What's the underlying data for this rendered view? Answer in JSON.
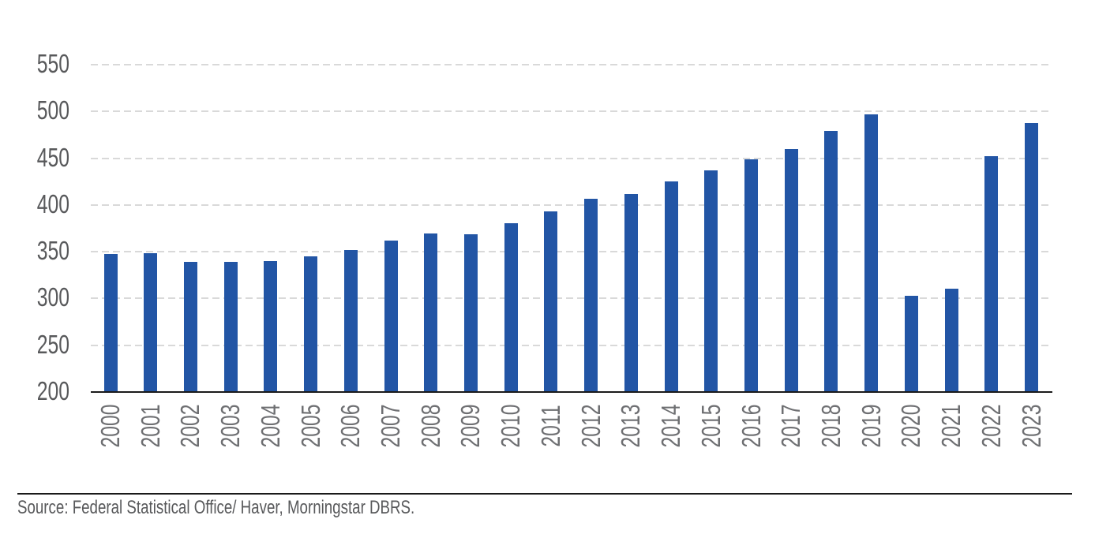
{
  "chart_data": {
    "type": "bar",
    "title": "",
    "categories": [
      "2000",
      "2001",
      "2002",
      "2003",
      "2004",
      "2005",
      "2006",
      "2007",
      "2008",
      "2009",
      "2010",
      "2011",
      "2012",
      "2013",
      "2014",
      "2015",
      "2016",
      "2017",
      "2018",
      "2019",
      "2020",
      "2021",
      "2022",
      "2023"
    ],
    "values": [
      347,
      348,
      338,
      338,
      339,
      344,
      351,
      361,
      369,
      368,
      380,
      392,
      406,
      411,
      424,
      436,
      448,
      459,
      478,
      496,
      302,
      310,
      451,
      487
    ],
    "xlabel": "",
    "ylabel": "",
    "ylim": [
      200,
      550
    ],
    "yticks": [
      200,
      250,
      300,
      350,
      400,
      450,
      500,
      550
    ],
    "grid": "horizontal-dashed",
    "legend": "none",
    "bar_color": "#2255A5"
  },
  "footer": {
    "source_text": "Source: Federal Statistical Office/ Haver, Morningstar DBRS."
  },
  "colors": {
    "bar": "#2255A5",
    "y_tick_label": "#58595B",
    "x_tick_label": "#6E6F72",
    "gridline": "#D9D9D9",
    "axis_line": "#1A1A1A",
    "footer_rule": "#1A1A1A",
    "source_text": "#58595B",
    "background": "#FFFFFF"
  }
}
